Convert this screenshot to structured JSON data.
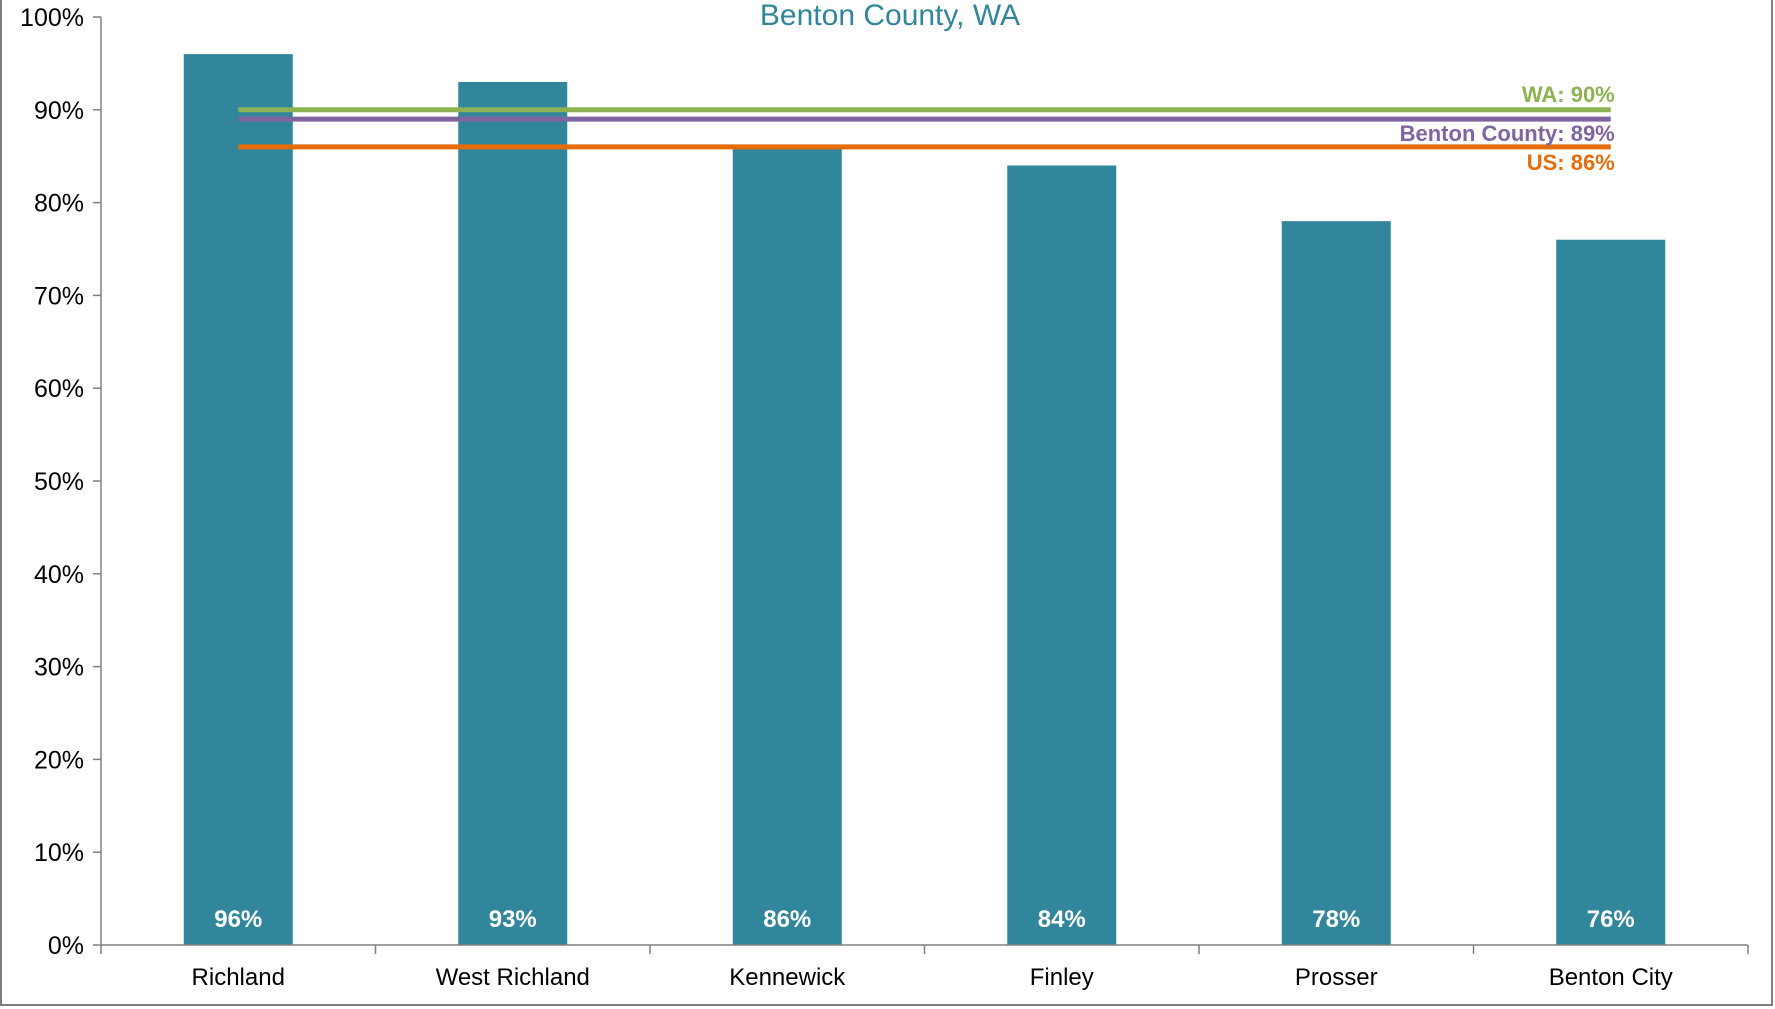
{
  "chart_data": {
    "type": "bar",
    "title": "Benton County, WA",
    "xlabel": "",
    "ylabel": "",
    "categories": [
      "Richland",
      "West Richland",
      "Kennewick",
      "Finley",
      "Prosser",
      "Benton City"
    ],
    "values": [
      96,
      93,
      86,
      84,
      78,
      76
    ],
    "value_labels": [
      "96%",
      "93%",
      "86%",
      "84%",
      "78%",
      "76%"
    ],
    "ylim": [
      0,
      100
    ],
    "yticks": [
      0,
      10,
      20,
      30,
      40,
      50,
      60,
      70,
      80,
      90,
      100
    ],
    "ytick_labels": [
      "0%",
      "10%",
      "20%",
      "30%",
      "40%",
      "50%",
      "60%",
      "70%",
      "80%",
      "90%",
      "100%"
    ],
    "grid": false,
    "bar_color": "#32869B",
    "reference_lines": [
      {
        "value": 90,
        "label": "WA: 90%",
        "color": "#8DB254"
      },
      {
        "value": 89,
        "label": "Benton County: 89%",
        "color": "#8064A2"
      },
      {
        "value": 86,
        "label": "US: 86%",
        "color": "#E46C0A"
      }
    ]
  },
  "colors": {
    "title": "#32869B",
    "axis": "#808080",
    "frame": "#7F7F7F"
  }
}
